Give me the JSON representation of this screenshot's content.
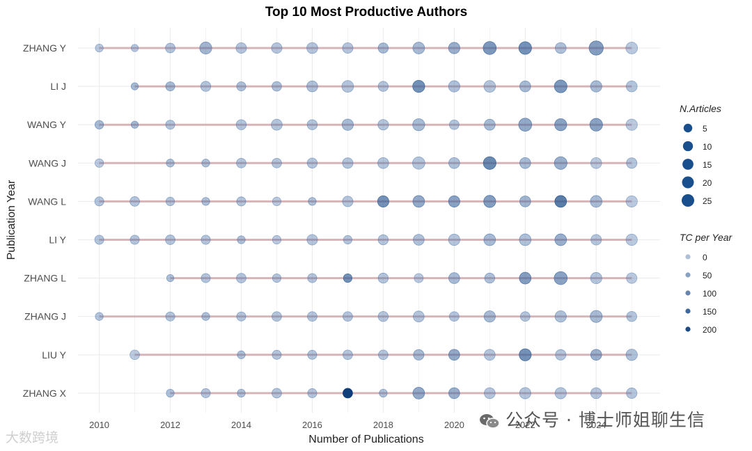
{
  "chart_data": {
    "type": "scatter",
    "title": "Top 10 Most Productive Authors",
    "xlabel": "Number of Publications",
    "ylabel": "Publication Year",
    "x_ticks": [
      2010,
      2012,
      2014,
      2016,
      2018,
      2020,
      2022,
      2024
    ],
    "xlim": [
      2009.4,
      2025.8
    ],
    "grid": true,
    "legend_position": "right",
    "size_legend": {
      "title": "N.Articles",
      "values": [
        5,
        10,
        15,
        20,
        25
      ],
      "labels": [
        "5",
        "10",
        "15",
        "20",
        "25"
      ]
    },
    "color_legend": {
      "title": "TC per Year",
      "values": [
        0,
        50,
        100,
        150,
        200
      ],
      "labels": [
        "0",
        "50",
        "100",
        "150",
        "200"
      ]
    },
    "colors": {
      "point": "#2b5a94",
      "point_dark": "#0e3f7a",
      "line": "#c9989c",
      "grid": "#ebebeb",
      "legend_point": "#1a4f8e"
    },
    "authors": [
      {
        "name": "ZHANG Y",
        "start": 2010,
        "end": 2025,
        "points": [
          [
            2010,
            3,
            10
          ],
          [
            2011,
            2,
            10
          ],
          [
            2012,
            6,
            20
          ],
          [
            2013,
            12,
            50
          ],
          [
            2014,
            8,
            20
          ],
          [
            2015,
            8,
            20
          ],
          [
            2016,
            9,
            20
          ],
          [
            2017,
            8,
            20
          ],
          [
            2018,
            7,
            40
          ],
          [
            2019,
            11,
            40
          ],
          [
            2020,
            10,
            60
          ],
          [
            2021,
            15,
            100
          ],
          [
            2022,
            14,
            110
          ],
          [
            2023,
            9,
            30
          ],
          [
            2024,
            19,
            90
          ],
          [
            2025,
            11,
            10
          ]
        ]
      },
      {
        "name": "LI J",
        "start": 2011,
        "end": 2025,
        "points": [
          [
            2011,
            2,
            40
          ],
          [
            2012,
            5,
            40
          ],
          [
            2013,
            7,
            20
          ],
          [
            2014,
            5,
            30
          ],
          [
            2015,
            6,
            30
          ],
          [
            2016,
            9,
            30
          ],
          [
            2017,
            11,
            20
          ],
          [
            2018,
            7,
            20
          ],
          [
            2019,
            12,
            110
          ],
          [
            2020,
            10,
            30
          ],
          [
            2021,
            11,
            20
          ],
          [
            2022,
            9,
            40
          ],
          [
            2023,
            14,
            100
          ],
          [
            2024,
            10,
            40
          ],
          [
            2025,
            9,
            20
          ]
        ]
      },
      {
        "name": "WANG Y",
        "start": 2010,
        "end": 2025,
        "points": [
          [
            2010,
            4,
            40
          ],
          [
            2011,
            2,
            40
          ],
          [
            2012,
            5,
            20
          ],
          [
            2014,
            7,
            20
          ],
          [
            2015,
            9,
            20
          ],
          [
            2016,
            7,
            20
          ],
          [
            2017,
            10,
            40
          ],
          [
            2018,
            8,
            20
          ],
          [
            2019,
            12,
            40
          ],
          [
            2020,
            6,
            20
          ],
          [
            2021,
            9,
            40
          ],
          [
            2022,
            15,
            70
          ],
          [
            2023,
            12,
            80
          ],
          [
            2024,
            14,
            80
          ],
          [
            2025,
            10,
            10
          ]
        ]
      },
      {
        "name": "WANG J",
        "start": 2010,
        "end": 2025,
        "points": [
          [
            2010,
            4,
            10
          ],
          [
            2012,
            3,
            30
          ],
          [
            2013,
            3,
            30
          ],
          [
            2014,
            6,
            20
          ],
          [
            2015,
            6,
            20
          ],
          [
            2016,
            7,
            20
          ],
          [
            2017,
            8,
            20
          ],
          [
            2018,
            9,
            20
          ],
          [
            2019,
            13,
            20
          ],
          [
            2020,
            9,
            30
          ],
          [
            2021,
            14,
            120
          ],
          [
            2022,
            9,
            40
          ],
          [
            2023,
            14,
            60
          ],
          [
            2024,
            9,
            10
          ],
          [
            2025,
            8,
            20
          ]
        ]
      },
      {
        "name": "WANG L",
        "start": 2010,
        "end": 2025,
        "points": [
          [
            2010,
            5,
            20
          ],
          [
            2011,
            6,
            20
          ],
          [
            2012,
            4,
            20
          ],
          [
            2013,
            3,
            30
          ],
          [
            2014,
            5,
            20
          ],
          [
            2015,
            4,
            10
          ],
          [
            2016,
            3,
            30
          ],
          [
            2017,
            8,
            20
          ],
          [
            2018,
            10,
            110
          ],
          [
            2019,
            11,
            70
          ],
          [
            2020,
            10,
            80
          ],
          [
            2021,
            12,
            90
          ],
          [
            2022,
            9,
            50
          ],
          [
            2023,
            11,
            140
          ],
          [
            2024,
            11,
            40
          ],
          [
            2025,
            10,
            10
          ]
        ]
      },
      {
        "name": "LI Y",
        "start": 2010,
        "end": 2025,
        "points": [
          [
            2010,
            5,
            20
          ],
          [
            2011,
            5,
            20
          ],
          [
            2012,
            6,
            20
          ],
          [
            2013,
            5,
            20
          ],
          [
            2014,
            3,
            30
          ],
          [
            2015,
            4,
            10
          ],
          [
            2016,
            8,
            20
          ],
          [
            2017,
            4,
            20
          ],
          [
            2018,
            7,
            20
          ],
          [
            2019,
            9,
            30
          ],
          [
            2020,
            10,
            20
          ],
          [
            2021,
            11,
            40
          ],
          [
            2022,
            11,
            30
          ],
          [
            2023,
            11,
            60
          ],
          [
            2024,
            8,
            20
          ],
          [
            2025,
            10,
            10
          ]
        ]
      },
      {
        "name": "ZHANG L",
        "start": 2012,
        "end": 2025,
        "points": [
          [
            2012,
            2,
            30
          ],
          [
            2013,
            5,
            20
          ],
          [
            2014,
            6,
            20
          ],
          [
            2015,
            4,
            20
          ],
          [
            2016,
            5,
            20
          ],
          [
            2017,
            4,
            110
          ],
          [
            2018,
            7,
            20
          ],
          [
            2019,
            5,
            10
          ],
          [
            2020,
            9,
            40
          ],
          [
            2021,
            7,
            30
          ],
          [
            2022,
            11,
            90
          ],
          [
            2023,
            15,
            80
          ],
          [
            2024,
            10,
            20
          ],
          [
            2025,
            8,
            10
          ]
        ]
      },
      {
        "name": "ZHANG J",
        "start": 2010,
        "end": 2025,
        "points": [
          [
            2010,
            3,
            20
          ],
          [
            2012,
            5,
            20
          ],
          [
            2013,
            3,
            30
          ],
          [
            2014,
            5,
            20
          ],
          [
            2015,
            6,
            20
          ],
          [
            2016,
            6,
            20
          ],
          [
            2017,
            6,
            20
          ],
          [
            2018,
            7,
            20
          ],
          [
            2019,
            9,
            20
          ],
          [
            2020,
            6,
            20
          ],
          [
            2021,
            10,
            40
          ],
          [
            2022,
            6,
            20
          ],
          [
            2023,
            10,
            30
          ],
          [
            2024,
            12,
            40
          ],
          [
            2025,
            7,
            20
          ]
        ]
      },
      {
        "name": "LIU Y",
        "start": 2011,
        "end": 2025,
        "points": [
          [
            2011,
            6,
            10
          ],
          [
            2014,
            3,
            30
          ],
          [
            2015,
            5,
            20
          ],
          [
            2016,
            5,
            20
          ],
          [
            2017,
            6,
            20
          ],
          [
            2018,
            6,
            20
          ],
          [
            2019,
            8,
            40
          ],
          [
            2020,
            9,
            70
          ],
          [
            2021,
            9,
            20
          ],
          [
            2022,
            12,
            110
          ],
          [
            2023,
            8,
            20
          ],
          [
            2024,
            9,
            60
          ],
          [
            2025,
            10,
            30
          ]
        ]
      },
      {
        "name": "ZHANG X",
        "start": 2012,
        "end": 2025,
        "points": [
          [
            2012,
            3,
            30
          ],
          [
            2013,
            5,
            20
          ],
          [
            2014,
            3,
            30
          ],
          [
            2015,
            6,
            20
          ],
          [
            2016,
            5,
            20
          ],
          [
            2017,
            6,
            220
          ],
          [
            2018,
            3,
            30
          ],
          [
            2019,
            11,
            70
          ],
          [
            2020,
            9,
            60
          ],
          [
            2021,
            9,
            20
          ],
          [
            2022,
            10,
            20
          ],
          [
            2023,
            10,
            20
          ],
          [
            2024,
            9,
            20
          ],
          [
            2025,
            8,
            20
          ]
        ]
      }
    ]
  },
  "watermarks": {
    "right": "公众号 · 博士师姐聊生信",
    "left": "大数跨境"
  }
}
